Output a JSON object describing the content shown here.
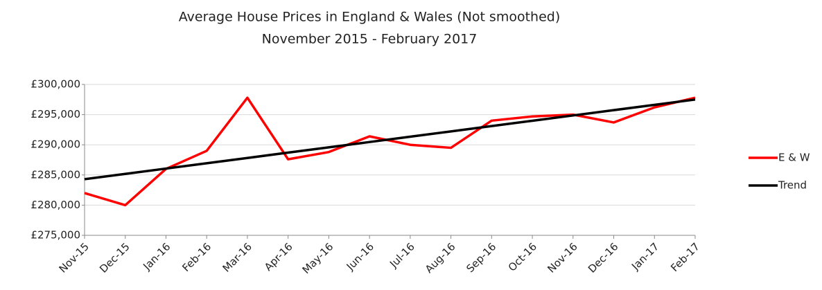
{
  "chart_data": {
    "type": "line",
    "title": "Average House Prices in England & Wales (Not smoothed)",
    "subtitle": "November 2015 - February 2017",
    "categories": [
      "Nov-15",
      "Dec-15",
      "Jan-16",
      "Feb-16",
      "Mar-16",
      "Apr-16",
      "May-16",
      "Jun-16",
      "Jul-16",
      "Aug-16",
      "Sep-16",
      "Oct-16",
      "Nov-16",
      "Dec-16",
      "Jan-17",
      "Feb-17"
    ],
    "series": [
      {
        "name": "E & W",
        "color": "#ff0000",
        "values": [
          282000,
          280000,
          286000,
          289000,
          297800,
          287600,
          288800,
          291400,
          290000,
          289500,
          294000,
          294700,
          295000,
          293700,
          296200,
          297800
        ]
      },
      {
        "name": "Trend",
        "color": "#000000",
        "values": [
          284300,
          285180,
          286060,
          286940,
          287820,
          288700,
          289580,
          290460,
          291340,
          292220,
          293100,
          293980,
          294860,
          295740,
          296620,
          297500
        ]
      }
    ],
    "ylim": [
      275000,
      300000
    ],
    "yticks": [
      {
        "value": 275000,
        "label": "£275,000"
      },
      {
        "value": 280000,
        "label": "£280,000"
      },
      {
        "value": 285000,
        "label": "£285,000"
      },
      {
        "value": 290000,
        "label": "£290,000"
      },
      {
        "value": 295000,
        "label": "£295,000"
      },
      {
        "value": 300000,
        "label": "£300,000"
      }
    ],
    "grid": true,
    "legend": "right"
  }
}
